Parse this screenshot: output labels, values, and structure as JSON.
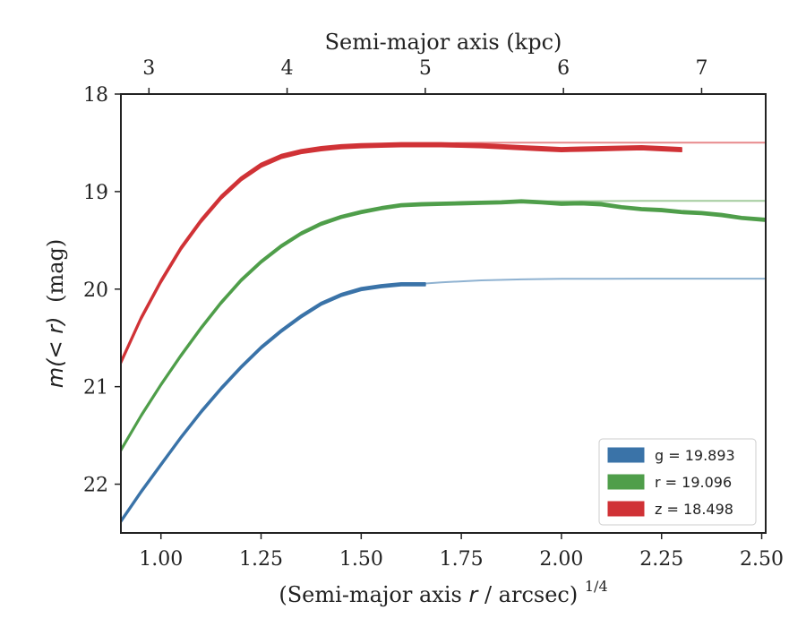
{
  "chart_data": {
    "type": "line",
    "xlabel": "(Semi-major axis r / arcsec)^{1/4}",
    "xlabel_parts": {
      "prefix": "(Semi-major axis ",
      "var": "r",
      "suffix": " / arcsec)",
      "exponent": "1/4"
    },
    "ylabel": "m(<r) (mag)",
    "ylabel_parts": {
      "math": "m(< r)",
      "unit": "(mag)"
    },
    "top_xlabel": "Semi-major axis (kpc)",
    "xlim": [
      0.9,
      2.51
    ],
    "ylim": [
      22.5,
      18.0
    ],
    "y_inverted": true,
    "x_ticks": [
      1.0,
      1.25,
      1.5,
      1.75,
      2.0,
      2.25,
      2.5
    ],
    "x_tick_labels": [
      "1.00",
      "1.25",
      "1.50",
      "1.75",
      "2.00",
      "2.25",
      "2.50"
    ],
    "y_ticks": [
      18,
      19,
      20,
      21,
      22
    ],
    "y_tick_labels": [
      "18",
      "19",
      "20",
      "21",
      "22"
    ],
    "top_x_ticks_pos": [
      0.97,
      1.315,
      1.66,
      2.005,
      2.35
    ],
    "top_x_tick_labels": [
      "3",
      "4",
      "5",
      "6",
      "7"
    ],
    "grid": false,
    "legend_position": "bottom-right",
    "series": [
      {
        "band": "g",
        "legend_label": "g = 19.893",
        "color": "#3a73a8",
        "fit_color": "#8fb2d1",
        "total_mag": 19.893,
        "band_halfwidth": 0.015,
        "x": [
          0.9,
          0.95,
          1.0,
          1.05,
          1.1,
          1.15,
          1.2,
          1.25,
          1.3,
          1.35,
          1.4,
          1.45,
          1.5,
          1.55,
          1.6,
          1.66
        ],
        "y": [
          22.38,
          22.08,
          21.8,
          21.52,
          21.26,
          21.02,
          20.8,
          20.6,
          20.43,
          20.28,
          20.15,
          20.06,
          20.0,
          19.97,
          19.95,
          19.95
        ],
        "fit_x": [
          1.5,
          1.6,
          1.7,
          1.8,
          1.9,
          2.0,
          2.1,
          2.2,
          2.3,
          2.4,
          2.51
        ],
        "fit_y": [
          19.99,
          19.96,
          19.93,
          19.91,
          19.9,
          19.895,
          19.894,
          19.893,
          19.893,
          19.893,
          19.893
        ]
      },
      {
        "band": "r",
        "legend_label": "r = 19.096",
        "color": "#4f9e4a",
        "fit_color": "#a3cc9d",
        "total_mag": 19.096,
        "band_halfwidth": 0.015,
        "x": [
          0.9,
          0.95,
          1.0,
          1.05,
          1.1,
          1.15,
          1.2,
          1.25,
          1.3,
          1.35,
          1.4,
          1.45,
          1.5,
          1.55,
          1.6,
          1.65,
          1.7,
          1.75,
          1.8,
          1.85,
          1.9,
          1.95,
          2.0,
          2.05,
          2.1,
          2.15,
          2.2,
          2.25,
          2.3,
          2.35,
          2.4,
          2.45,
          2.51
        ],
        "y": [
          21.65,
          21.3,
          20.98,
          20.68,
          20.4,
          20.14,
          19.91,
          19.72,
          19.56,
          19.43,
          19.33,
          19.26,
          19.21,
          19.17,
          19.14,
          19.13,
          19.125,
          19.12,
          19.115,
          19.11,
          19.1,
          19.11,
          19.125,
          19.12,
          19.13,
          19.16,
          19.18,
          19.19,
          19.21,
          19.22,
          19.24,
          19.27,
          19.29
        ],
        "fit_x": [
          1.5,
          1.6,
          1.7,
          1.8,
          1.9,
          2.0,
          2.1,
          2.2,
          2.3,
          2.4,
          2.51
        ],
        "fit_y": [
          19.2,
          19.15,
          19.125,
          19.11,
          19.1,
          19.098,
          19.097,
          19.096,
          19.096,
          19.096,
          19.096
        ]
      },
      {
        "band": "z",
        "legend_label": "z = 18.498",
        "color": "#d03236",
        "fit_color": "#e8898c",
        "total_mag": 18.498,
        "band_halfwidth": 0.02,
        "x": [
          0.9,
          0.95,
          1.0,
          1.05,
          1.1,
          1.15,
          1.2,
          1.25,
          1.3,
          1.35,
          1.4,
          1.45,
          1.5,
          1.55,
          1.6,
          1.65,
          1.7,
          1.75,
          1.8,
          1.85,
          1.9,
          1.95,
          2.0,
          2.05,
          2.1,
          2.15,
          2.2,
          2.25,
          2.3
        ],
        "y": [
          20.75,
          20.3,
          19.92,
          19.58,
          19.3,
          19.06,
          18.87,
          18.73,
          18.64,
          18.59,
          18.56,
          18.54,
          18.53,
          18.525,
          18.52,
          18.52,
          18.52,
          18.525,
          18.53,
          18.54,
          18.55,
          18.56,
          18.57,
          18.565,
          18.56,
          18.555,
          18.55,
          18.56,
          18.57
        ],
        "fit_x": [
          1.5,
          1.6,
          1.7,
          1.8,
          1.9,
          2.0,
          2.1,
          2.2,
          2.3,
          2.4,
          2.51
        ],
        "fit_y": [
          18.52,
          18.51,
          18.505,
          18.5,
          18.499,
          18.498,
          18.498,
          18.498,
          18.498,
          18.498,
          18.498
        ]
      }
    ]
  }
}
